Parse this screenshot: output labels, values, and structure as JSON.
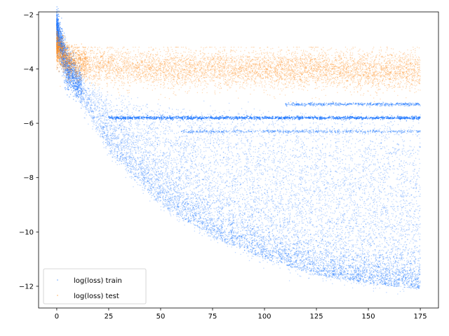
{
  "chart_data": {
    "type": "scatter",
    "title": "",
    "xlabel": "",
    "ylabel": "",
    "xlim": [
      -8.75,
      183.75
    ],
    "ylim": [
      -12.8,
      -1.9
    ],
    "x_ticks": [
      0,
      25,
      50,
      75,
      100,
      125,
      150,
      175
    ],
    "y_ticks": [
      -2,
      -4,
      -6,
      -8,
      -10,
      -12
    ],
    "grid": false,
    "legend_position": "lower-left",
    "series": [
      {
        "name": "log(loss) train",
        "color": "#1f77ff",
        "description_points": [
          {
            "x": 0,
            "y": -2.5
          },
          {
            "x": 5,
            "y": -4.0
          },
          {
            "x": 25,
            "y": -5.6
          },
          {
            "x": 50,
            "y": -7.0
          },
          {
            "x": 100,
            "y": -8.5
          },
          {
            "x": 150,
            "y": -9.2
          },
          {
            "x": 175,
            "y": -9.4
          }
        ],
        "lower_envelope": [
          {
            "x": 0,
            "y": -2.6
          },
          {
            "x": 10,
            "y": -5.0
          },
          {
            "x": 25,
            "y": -7.0
          },
          {
            "x": 50,
            "y": -9.0
          },
          {
            "x": 75,
            "y": -10.2
          },
          {
            "x": 100,
            "y": -11.0
          },
          {
            "x": 125,
            "y": -11.6
          },
          {
            "x": 150,
            "y": -11.9
          },
          {
            "x": 175,
            "y": -12.1
          }
        ],
        "upper_envelope": [
          {
            "x": 0,
            "y": -2.4
          },
          {
            "x": 10,
            "y": -4.2
          },
          {
            "x": 25,
            "y": -5.0
          },
          {
            "x": 50,
            "y": -5.4
          },
          {
            "x": 100,
            "y": -5.6
          },
          {
            "x": 175,
            "y": -5.7
          }
        ],
        "plateaus": [
          {
            "y": -5.8,
            "x_start": 25,
            "x_end": 175
          },
          {
            "y": -6.3,
            "x_start": 60,
            "x_end": 175
          },
          {
            "y": -5.3,
            "x_start": 110,
            "x_end": 175
          }
        ]
      },
      {
        "name": "log(loss) test",
        "color": "#ff8c1a",
        "description_points": [
          {
            "x": 0,
            "y": -3.2
          },
          {
            "x": 5,
            "y": -3.7
          },
          {
            "x": 25,
            "y": -3.95
          },
          {
            "x": 50,
            "y": -4.0
          },
          {
            "x": 100,
            "y": -4.0
          },
          {
            "x": 150,
            "y": -4.05
          },
          {
            "x": 175,
            "y": -4.05
          }
        ],
        "band_low": -5.2,
        "band_high": -3.2
      }
    ]
  }
}
